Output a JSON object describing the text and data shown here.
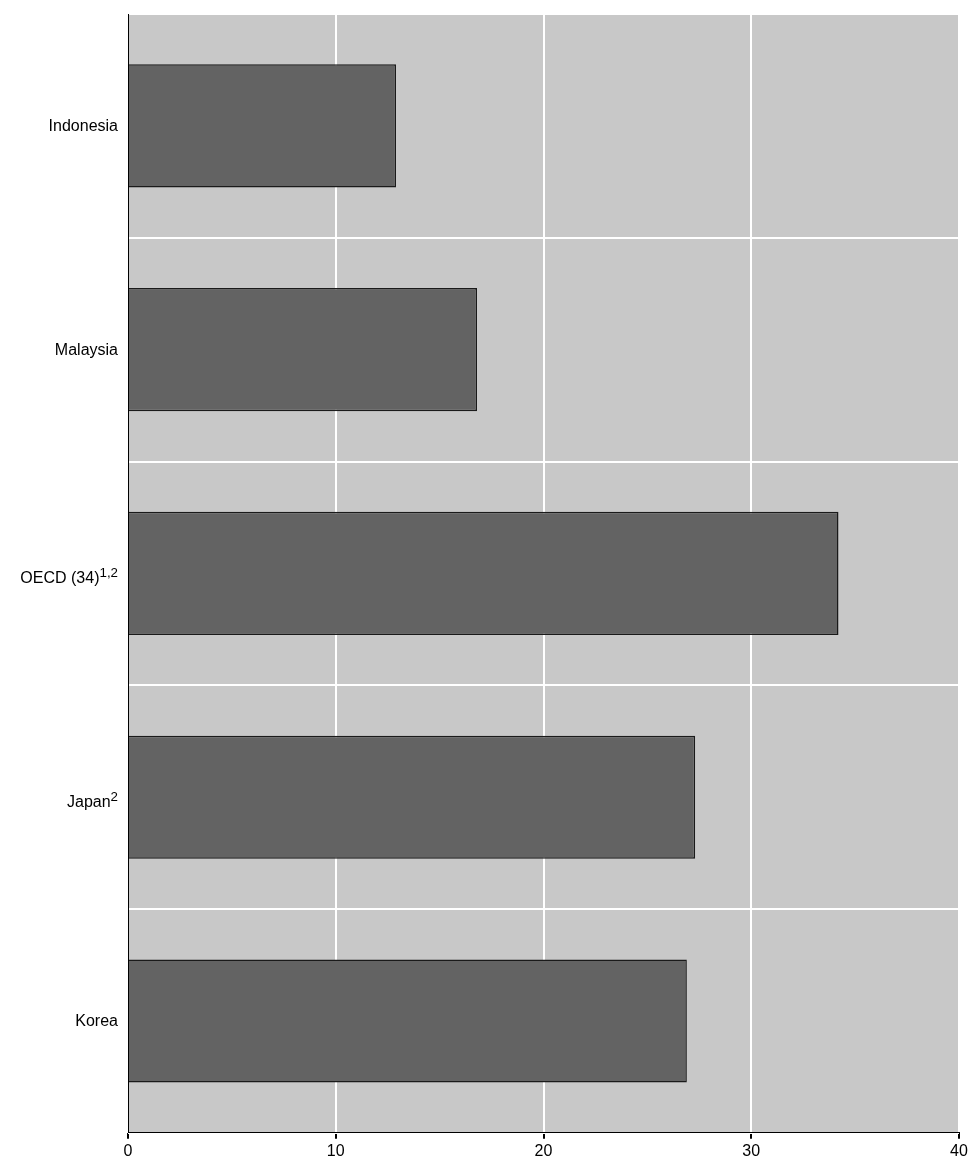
{
  "chart_data": {
    "type": "bar",
    "orientation": "horizontal",
    "categories": [
      "Indonesia",
      "Malaysia",
      "OECD (34)$^{1,2}$",
      "Japan$^{2}$",
      "Korea"
    ],
    "values": [
      12.9,
      16.8,
      34.2,
      27.3,
      26.9
    ],
    "color": "#636363",
    "xlim": [
      0,
      40
    ],
    "xticks": [
      0,
      10,
      20,
      30,
      40
    ],
    "grid": true,
    "legend": false
  }
}
